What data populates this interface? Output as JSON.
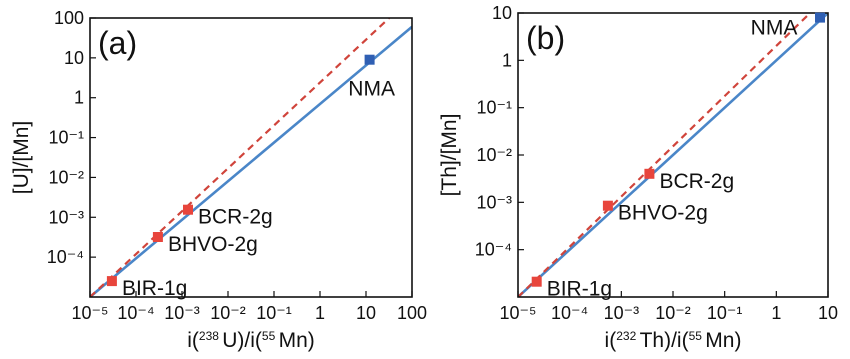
{
  "chart_data": [
    {
      "type": "scatter",
      "panel_label": "(a)",
      "xlabel": "i(238 U)/i(55 Mn)",
      "ylabel": "[U]/[Mn]",
      "x_scale": "log",
      "y_scale": "log",
      "xlim": [
        1e-05,
        100
      ],
      "ylim": [
        1e-05,
        100
      ],
      "x_ticks": [
        {
          "value": 1e-05,
          "label": "10⁻⁵"
        },
        {
          "value": 0.0001,
          "label": "10⁻⁴"
        },
        {
          "value": 0.001,
          "label": "10⁻³"
        },
        {
          "value": 0.01,
          "label": "10⁻²"
        },
        {
          "value": 0.1,
          "label": "10⁻¹"
        },
        {
          "value": 1,
          "label": "1"
        },
        {
          "value": 10,
          "label": "10"
        },
        {
          "value": 100,
          "label": "100"
        }
      ],
      "y_ticks": [
        {
          "value": 0.0001,
          "label": "10⁻⁴"
        },
        {
          "value": 0.001,
          "label": "10⁻³"
        },
        {
          "value": 0.01,
          "label": "10⁻²"
        },
        {
          "value": 0.1,
          "label": "10⁻¹"
        },
        {
          "value": 1,
          "label": "1"
        },
        {
          "value": 10,
          "label": "10"
        },
        {
          "value": 100,
          "label": "100"
        }
      ],
      "points": [
        {
          "label": "BIR-1g",
          "x": 3e-05,
          "y": 2.5e-05,
          "color": "#e8453c",
          "label_side": "right"
        },
        {
          "label": "BHVO-2g",
          "x": 0.0003,
          "y": 0.00032,
          "color": "#e8453c",
          "label_side": "right"
        },
        {
          "label": "BCR-2g",
          "x": 0.00135,
          "y": 0.00155,
          "color": "#e8453c",
          "label_side": "right"
        },
        {
          "label": "NMA",
          "x": 12,
          "y": 9,
          "color": "#2f5fb3",
          "label_side": "below"
        }
      ],
      "lines": [
        {
          "style": "solid",
          "color": "#4a86c8",
          "x": [
            1e-05,
            100
          ],
          "y": [
            1e-05,
            60
          ]
        },
        {
          "style": "dashed",
          "color": "#d0443b",
          "x": [
            1e-05,
            32
          ],
          "y": [
            1e-05,
            100
          ]
        }
      ]
    },
    {
      "type": "scatter",
      "panel_label": "(b)",
      "xlabel": "i(232 Th)/i(55 Mn)",
      "ylabel": "[Th]/[Mn]",
      "x_scale": "log",
      "y_scale": "log",
      "xlim": [
        1e-05,
        10
      ],
      "ylim": [
        1e-05,
        10
      ],
      "x_ticks": [
        {
          "value": 1e-05,
          "label": "10⁻⁵"
        },
        {
          "value": 0.0001,
          "label": "10⁻⁴"
        },
        {
          "value": 0.001,
          "label": "10⁻³"
        },
        {
          "value": 0.01,
          "label": "10⁻²"
        },
        {
          "value": 0.1,
          "label": "10⁻¹"
        },
        {
          "value": 1,
          "label": "1"
        },
        {
          "value": 10,
          "label": "10"
        }
      ],
      "y_ticks": [
        {
          "value": 0.0001,
          "label": "10⁻⁴"
        },
        {
          "value": 0.001,
          "label": "10⁻³"
        },
        {
          "value": 0.01,
          "label": "10⁻²"
        },
        {
          "value": 0.1,
          "label": "10⁻¹"
        },
        {
          "value": 1,
          "label": "1"
        },
        {
          "value": 10,
          "label": "10"
        }
      ],
      "points": [
        {
          "label": "BIR-1g",
          "x": 2.3e-05,
          "y": 2.1e-05,
          "color": "#e8453c",
          "label_side": "right"
        },
        {
          "label": "BHVO-2g",
          "x": 0.00055,
          "y": 0.00085,
          "color": "#e8453c",
          "label_side": "right"
        },
        {
          "label": "BCR-2g",
          "x": 0.0035,
          "y": 0.004,
          "color": "#e8453c",
          "label_side": "right"
        },
        {
          "label": "NMA",
          "x": 7,
          "y": 8,
          "color": "#2f5fb3",
          "label_side": "left"
        }
      ],
      "lines": [
        {
          "style": "solid",
          "color": "#4a86c8",
          "x": [
            1e-05,
            10
          ],
          "y": [
            1e-05,
            10
          ]
        },
        {
          "style": "dashed",
          "color": "#d0443b",
          "x": [
            1e-05,
            4.5
          ],
          "y": [
            1e-05,
            10
          ]
        }
      ]
    }
  ]
}
